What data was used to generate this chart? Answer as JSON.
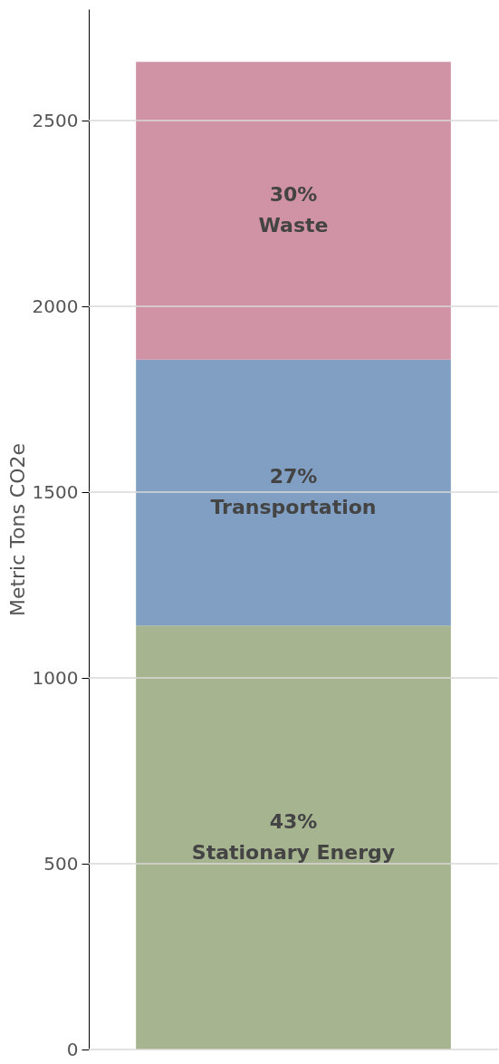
{
  "chart_data": {
    "type": "bar",
    "stacked": true,
    "ylabel": "Metric Tons CO2e",
    "categories": [
      null
    ],
    "series": [
      {
        "name": "Stationary Energy",
        "color": "#a6b590",
        "values": [
          1141
        ]
      },
      {
        "name": "Transportation",
        "color": "#809fc2",
        "values": [
          716
        ]
      },
      {
        "name": "Waste",
        "color": "#d093a5",
        "values": [
          801
        ]
      }
    ],
    "annotations": [
      "43%",
      "27%",
      "30%"
    ],
    "ylim": [
      0,
      2800
    ],
    "yticks": [
      0,
      500,
      1000,
      1500,
      2000,
      2500
    ],
    "grid": "y"
  }
}
